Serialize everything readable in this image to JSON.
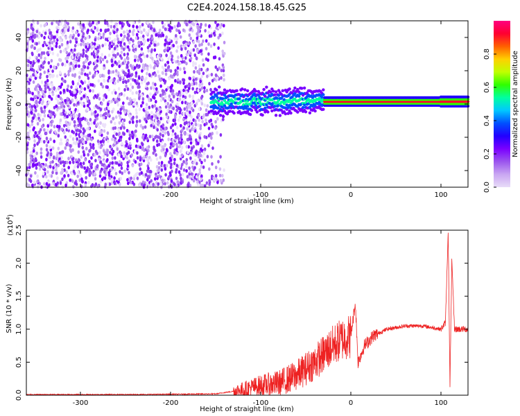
{
  "title": "C2E4.2024.158.18.45.G25",
  "chart_data": [
    {
      "type": "heatmap",
      "name": "spectrogram",
      "xlabel": "Height of straight line (km)",
      "ylabel": "Frequency (Hz)",
      "xlim": [
        -360,
        130
      ],
      "ylim": [
        -50,
        50
      ],
      "xticks": [
        -300,
        -200,
        -100,
        0,
        100
      ],
      "yticks": [
        -40,
        -20,
        0,
        20,
        40
      ],
      "colorbar": {
        "label": "Normalized spectral amplitude",
        "range": [
          0,
          1
        ],
        "ticks": [
          0.0,
          0.2,
          0.4,
          0.6,
          0.8
        ],
        "colormap": [
          "#e8dcf8",
          "#c9a6f2",
          "#9b55ee",
          "#7a00ff",
          "#2200ff",
          "#0050ff",
          "#00c8ff",
          "#00ffa0",
          "#30ff00",
          "#c0ff00",
          "#ffd000",
          "#ff6000",
          "#ff0030",
          "#ff0080"
        ]
      },
      "features": {
        "noise_band_x": [
          -360,
          -140
        ],
        "signal_band_x": [
          -155,
          130
        ],
        "signal_center_hz": 1.5,
        "grid": false
      }
    },
    {
      "type": "line",
      "name": "snr",
      "xlabel": "Height of straight line (km)",
      "ylabel": "SNR (10 * v/v)",
      "yscale_label": "(x10",
      "yscale_exp": "4",
      "yscale_close": ")",
      "xlim": [
        -360,
        130
      ],
      "ylim": [
        0,
        2.5
      ],
      "xticks": [
        -300,
        -200,
        -100,
        0,
        100
      ],
      "yticks": [
        "0.0",
        "0.5",
        "1.0",
        "1.5",
        "2.0",
        "2.5"
      ],
      "ytick_values": [
        0,
        0.5,
        1.0,
        1.5,
        2.0,
        2.5
      ],
      "color": "#ee2222",
      "series_points": [
        [
          -360,
          0.01
        ],
        [
          -250,
          0.01
        ],
        [
          -150,
          0.02
        ],
        [
          -120,
          0.08
        ],
        [
          -100,
          0.15
        ],
        [
          -80,
          0.18
        ],
        [
          -60,
          0.3
        ],
        [
          -40,
          0.5
        ],
        [
          -20,
          0.75
        ],
        [
          -10,
          0.85
        ],
        [
          0,
          0.9
        ],
        [
          5,
          1.4
        ],
        [
          8,
          0.5
        ],
        [
          15,
          0.75
        ],
        [
          25,
          0.9
        ],
        [
          40,
          1.0
        ],
        [
          60,
          1.05
        ],
        [
          80,
          1.05
        ],
        [
          100,
          1.0
        ],
        [
          105,
          1.1
        ],
        [
          108,
          2.5
        ],
        [
          110,
          0.1
        ],
        [
          112,
          2.05
        ],
        [
          115,
          1.0
        ],
        [
          130,
          1.0
        ]
      ]
    }
  ]
}
